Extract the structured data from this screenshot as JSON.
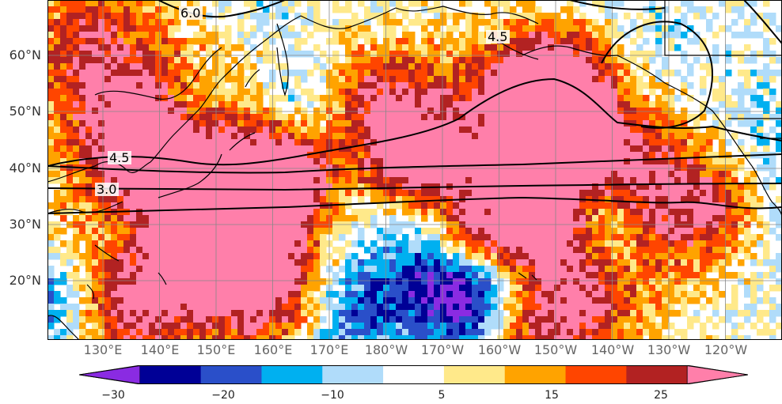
{
  "map": {
    "latitude_labels": [
      "60°N",
      "50°N",
      "40°N",
      "30°N",
      "20°N"
    ],
    "longitude_labels": [
      "130°E",
      "140°E",
      "150°E",
      "160°E",
      "170°E",
      "180°W",
      "170°W",
      "160°W",
      "150°W",
      "140°W",
      "130°W",
      "120°W"
    ],
    "contour_labels": [
      "6.0",
      "4.5",
      "4.5",
      "3.0"
    ]
  },
  "colorbar": {
    "tick_labels": [
      "−30",
      "−20",
      "−10",
      "5",
      "15",
      "25"
    ],
    "bins": [
      "#8a2be2",
      "#000096",
      "#2a4fc9",
      "#00b0f0",
      "#b0dcfa",
      "#ffffff",
      "#ffe98a",
      "#ffa300",
      "#ff4500",
      "#b22222",
      "#ff7faa"
    ]
  },
  "colors": {
    "coastline": "#000000",
    "contour": "#000000",
    "grid": "#888888"
  }
}
